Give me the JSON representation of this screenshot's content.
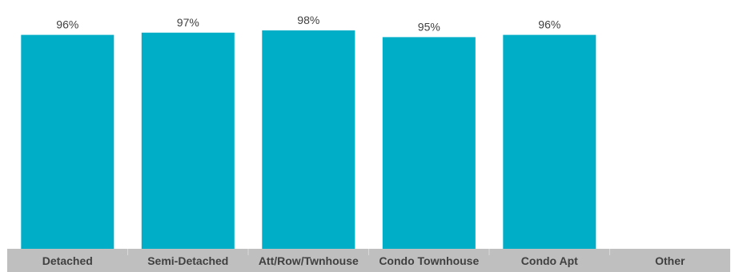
{
  "chart_data": {
    "type": "bar",
    "categories": [
      "Detached",
      "Semi-Detached",
      "Att/Row/Twnhouse",
      "Condo Townhouse",
      "Condo Apt",
      "Other"
    ],
    "values": [
      96,
      97,
      98,
      95,
      96,
      null
    ],
    "value_labels": [
      "96%",
      "97%",
      "98%",
      "95%",
      "96%",
      ""
    ],
    "ylim": [
      0,
      100
    ],
    "grid": false,
    "legend": "none",
    "title": "",
    "xlabel": "",
    "ylabel": "",
    "colors": {
      "bar": "#00AEC7",
      "axis_band": "#BFBFBF",
      "separator": "#D9D9D9",
      "label_text": "#404040"
    }
  }
}
